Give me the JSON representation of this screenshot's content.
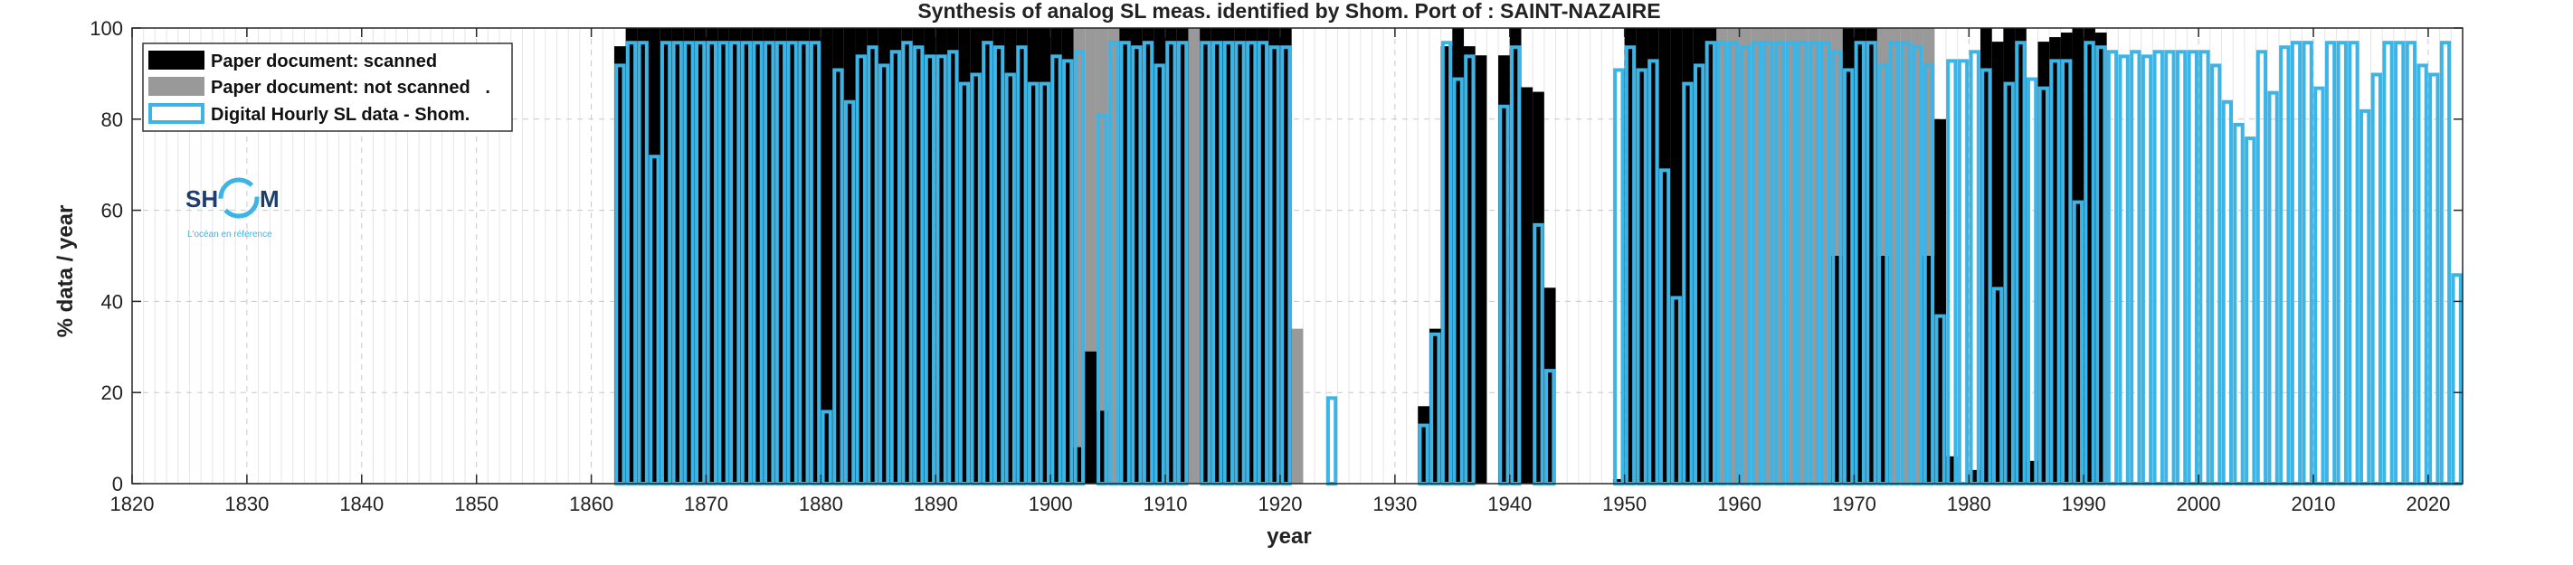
{
  "chart_data": {
    "type": "bar",
    "title": "Synthesis of analog SL meas. identified by Shom. Port of : SAINT-NAZAIRE",
    "xlabel": "year",
    "ylabel": "% data / year",
    "xlim": [
      1820,
      2023
    ],
    "ylim": [
      0,
      100
    ],
    "x_ticks": [
      1820,
      1830,
      1840,
      1850,
      1860,
      1870,
      1880,
      1890,
      1900,
      1910,
      1920,
      1930,
      1940,
      1950,
      1960,
      1970,
      1980,
      1990,
      2000,
      2010,
      2020
    ],
    "x_tick_labels": [
      "1820",
      "1830",
      "1840",
      "1850",
      "1860",
      "1870",
      "1880",
      "1890",
      "1900",
      "1910",
      "1920",
      "1930",
      "1940",
      "1950",
      "1960",
      "1970",
      "1980",
      "1990",
      "2000",
      "2010",
      "2020"
    ],
    "y_ticks": [
      0,
      20,
      40,
      60,
      80,
      100
    ],
    "y_tick_labels": [
      "0",
      "20",
      "40",
      "60",
      "80",
      "100"
    ],
    "grid": true,
    "legend_position": "top-left",
    "colors": {
      "scanned": "#000000",
      "not_scanned": "#999999",
      "digital": "#3cb4e6"
    },
    "series": [
      {
        "name": "Paper document: scanned",
        "style": "filled",
        "points": [
          [
            1862,
            96
          ],
          [
            1863,
            100
          ],
          [
            1864,
            100
          ],
          [
            1865,
            100
          ],
          [
            1866,
            100
          ],
          [
            1867,
            100
          ],
          [
            1868,
            100
          ],
          [
            1869,
            100
          ],
          [
            1870,
            100
          ],
          [
            1871,
            100
          ],
          [
            1872,
            100
          ],
          [
            1873,
            100
          ],
          [
            1874,
            100
          ],
          [
            1875,
            100
          ],
          [
            1876,
            100
          ],
          [
            1877,
            100
          ],
          [
            1878,
            100
          ],
          [
            1879,
            100
          ],
          [
            1880,
            100
          ],
          [
            1881,
            100
          ],
          [
            1882,
            100
          ],
          [
            1883,
            100
          ],
          [
            1884,
            100
          ],
          [
            1885,
            100
          ],
          [
            1886,
            100
          ],
          [
            1887,
            100
          ],
          [
            1888,
            100
          ],
          [
            1889,
            100
          ],
          [
            1890,
            100
          ],
          [
            1891,
            100
          ],
          [
            1892,
            100
          ],
          [
            1893,
            100
          ],
          [
            1894,
            100
          ],
          [
            1895,
            100
          ],
          [
            1896,
            100
          ],
          [
            1897,
            100
          ],
          [
            1898,
            100
          ],
          [
            1899,
            100
          ],
          [
            1900,
            100
          ],
          [
            1901,
            100
          ],
          [
            1902,
            8
          ],
          [
            1903,
            29
          ],
          [
            1904,
            16
          ],
          [
            1906,
            100
          ],
          [
            1907,
            100
          ],
          [
            1908,
            100
          ],
          [
            1909,
            100
          ],
          [
            1910,
            100
          ],
          [
            1911,
            100
          ],
          [
            1913,
            100
          ],
          [
            1914,
            100
          ],
          [
            1915,
            100
          ],
          [
            1916,
            100
          ],
          [
            1917,
            100
          ],
          [
            1918,
            100
          ],
          [
            1919,
            100
          ],
          [
            1920,
            100
          ],
          [
            1932,
            17
          ],
          [
            1933,
            34
          ],
          [
            1934,
            96
          ],
          [
            1935,
            100
          ],
          [
            1936,
            96
          ],
          [
            1937,
            94
          ],
          [
            1939,
            94
          ],
          [
            1940,
            100
          ],
          [
            1941,
            87
          ],
          [
            1942,
            86
          ],
          [
            1943,
            43
          ],
          [
            1949,
            1
          ],
          [
            1950,
            100
          ],
          [
            1951,
            100
          ],
          [
            1952,
            100
          ],
          [
            1953,
            100
          ],
          [
            1954,
            100
          ],
          [
            1955,
            100
          ],
          [
            1956,
            100
          ],
          [
            1957,
            100
          ],
          [
            1968,
            50
          ],
          [
            1969,
            100
          ],
          [
            1970,
            100
          ],
          [
            1971,
            100
          ],
          [
            1972,
            50
          ],
          [
            1976,
            50
          ],
          [
            1977,
            80
          ],
          [
            1978,
            6
          ],
          [
            1980,
            3
          ],
          [
            1981,
            100
          ],
          [
            1982,
            97
          ],
          [
            1983,
            100
          ],
          [
            1984,
            100
          ],
          [
            1985,
            5
          ],
          [
            1986,
            97
          ],
          [
            1987,
            98
          ],
          [
            1988,
            99
          ],
          [
            1989,
            100
          ],
          [
            1990,
            100
          ],
          [
            1991,
            99
          ]
        ]
      },
      {
        "name": "Paper document: not scanned   .",
        "style": "filled",
        "points": [
          [
            1902,
            100
          ],
          [
            1903,
            100
          ],
          [
            1904,
            100
          ],
          [
            1905,
            100
          ],
          [
            1912,
            100
          ],
          [
            1921,
            34
          ],
          [
            1956,
            100
          ],
          [
            1957,
            100
          ],
          [
            1958,
            100
          ],
          [
            1959,
            100
          ],
          [
            1960,
            100
          ],
          [
            1961,
            100
          ],
          [
            1962,
            100
          ],
          [
            1963,
            100
          ],
          [
            1964,
            100
          ],
          [
            1965,
            100
          ],
          [
            1966,
            100
          ],
          [
            1967,
            100
          ],
          [
            1968,
            100
          ],
          [
            1972,
            100
          ],
          [
            1973,
            100
          ],
          [
            1974,
            100
          ],
          [
            1975,
            100
          ],
          [
            1976,
            100
          ]
        ]
      },
      {
        "name": "Digital Hourly SL data - Shom.",
        "style": "outline",
        "points": [
          [
            1862,
            92
          ],
          [
            1863,
            97
          ],
          [
            1864,
            97
          ],
          [
            1865,
            72
          ],
          [
            1866,
            97
          ],
          [
            1867,
            97
          ],
          [
            1868,
            97
          ],
          [
            1869,
            97
          ],
          [
            1870,
            97
          ],
          [
            1871,
            97
          ],
          [
            1872,
            97
          ],
          [
            1873,
            97
          ],
          [
            1874,
            97
          ],
          [
            1875,
            97
          ],
          [
            1876,
            97
          ],
          [
            1877,
            97
          ],
          [
            1878,
            97
          ],
          [
            1879,
            97
          ],
          [
            1880,
            16
          ],
          [
            1881,
            91
          ],
          [
            1882,
            84
          ],
          [
            1883,
            94
          ],
          [
            1884,
            96
          ],
          [
            1885,
            92
          ],
          [
            1886,
            95
          ],
          [
            1887,
            97
          ],
          [
            1888,
            96
          ],
          [
            1889,
            94
          ],
          [
            1890,
            94
          ],
          [
            1891,
            95
          ],
          [
            1892,
            88
          ],
          [
            1893,
            90
          ],
          [
            1894,
            97
          ],
          [
            1895,
            96
          ],
          [
            1896,
            90
          ],
          [
            1897,
            96
          ],
          [
            1898,
            88
          ],
          [
            1899,
            88
          ],
          [
            1900,
            94
          ],
          [
            1901,
            93
          ],
          [
            1902,
            95
          ],
          [
            1904,
            81
          ],
          [
            1905,
            97
          ],
          [
            1906,
            97
          ],
          [
            1907,
            96
          ],
          [
            1908,
            97
          ],
          [
            1909,
            92
          ],
          [
            1910,
            97
          ],
          [
            1911,
            97
          ],
          [
            1913,
            97
          ],
          [
            1914,
            97
          ],
          [
            1915,
            97
          ],
          [
            1916,
            97
          ],
          [
            1917,
            97
          ],
          [
            1918,
            97
          ],
          [
            1919,
            96
          ],
          [
            1920,
            96
          ],
          [
            1924,
            19
          ],
          [
            1932,
            13
          ],
          [
            1933,
            33
          ],
          [
            1934,
            97
          ],
          [
            1935,
            89
          ],
          [
            1936,
            94
          ],
          [
            1939,
            83
          ],
          [
            1940,
            96
          ],
          [
            1942,
            57
          ],
          [
            1943,
            25
          ],
          [
            1949,
            91
          ],
          [
            1950,
            96
          ],
          [
            1951,
            91
          ],
          [
            1952,
            93
          ],
          [
            1953,
            69
          ],
          [
            1954,
            41
          ],
          [
            1955,
            88
          ],
          [
            1956,
            92
          ],
          [
            1957,
            97
          ],
          [
            1958,
            97
          ],
          [
            1959,
            97
          ],
          [
            1960,
            96
          ],
          [
            1961,
            97
          ],
          [
            1962,
            97
          ],
          [
            1963,
            97
          ],
          [
            1964,
            97
          ],
          [
            1965,
            97
          ],
          [
            1966,
            97
          ],
          [
            1967,
            97
          ],
          [
            1968,
            95
          ],
          [
            1969,
            91
          ],
          [
            1970,
            97
          ],
          [
            1971,
            97
          ],
          [
            1972,
            92
          ],
          [
            1973,
            97
          ],
          [
            1974,
            97
          ],
          [
            1975,
            96
          ],
          [
            1976,
            92
          ],
          [
            1977,
            37
          ],
          [
            1978,
            93
          ],
          [
            1979,
            93
          ],
          [
            1980,
            95
          ],
          [
            1981,
            91
          ],
          [
            1982,
            43
          ],
          [
            1983,
            88
          ],
          [
            1984,
            97
          ],
          [
            1985,
            89
          ],
          [
            1986,
            87
          ],
          [
            1987,
            93
          ],
          [
            1988,
            93
          ],
          [
            1989,
            62
          ],
          [
            1990,
            97
          ],
          [
            1991,
            96
          ],
          [
            1992,
            95
          ],
          [
            1993,
            94
          ],
          [
            1994,
            95
          ],
          [
            1995,
            94
          ],
          [
            1996,
            95
          ],
          [
            1997,
            95
          ],
          [
            1998,
            95
          ],
          [
            1999,
            95
          ],
          [
            2000,
            95
          ],
          [
            2001,
            92
          ],
          [
            2002,
            84
          ],
          [
            2003,
            79
          ],
          [
            2004,
            76
          ],
          [
            2005,
            95
          ],
          [
            2006,
            86
          ],
          [
            2007,
            96
          ],
          [
            2008,
            97
          ],
          [
            2009,
            97
          ],
          [
            2010,
            87
          ],
          [
            2011,
            97
          ],
          [
            2012,
            97
          ],
          [
            2013,
            97
          ],
          [
            2014,
            82
          ],
          [
            2015,
            90
          ],
          [
            2016,
            97
          ],
          [
            2017,
            97
          ],
          [
            2018,
            97
          ],
          [
            2019,
            92
          ],
          [
            2020,
            90
          ],
          [
            2021,
            97
          ],
          [
            2022,
            46
          ]
        ]
      }
    ]
  },
  "logo": {
    "text_left": "SH",
    "text_right": "M",
    "tagline": "L'océan en référence",
    "color_dark": "#1f3d6b",
    "color_accent": "#3cb4e6"
  }
}
